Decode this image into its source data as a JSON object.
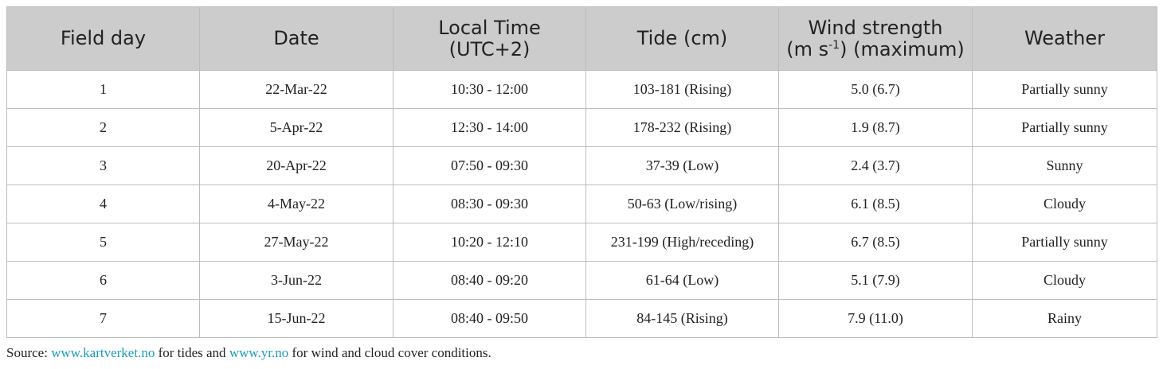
{
  "table": {
    "headers": [
      [
        "Field day"
      ],
      [
        "Date"
      ],
      [
        "Local Time",
        "(UTC+2)"
      ],
      [
        "Tide (cm)"
      ],
      [
        "Wind strength",
        "(m s",
        "-1",
        ") (maximum)"
      ],
      [
        "Weather"
      ]
    ],
    "rows": [
      [
        "1",
        "22-Mar-22",
        "10:30 - 12:00",
        "103-181 (Rising)",
        "5.0 (6.7)",
        "Partially sunny"
      ],
      [
        "2",
        "5-Apr-22",
        "12:30 - 14:00",
        "178-232 (Rising)",
        "1.9 (8.7)",
        "Partially sunny"
      ],
      [
        "3",
        "20-Apr-22",
        "07:50 - 09:30",
        "37-39 (Low)",
        "2.4 (3.7)",
        "Sunny"
      ],
      [
        "4",
        "4-May-22",
        "08:30 - 09:30",
        "50-63 (Low/rising)",
        "6.1 (8.5)",
        "Cloudy"
      ],
      [
        "5",
        "27-May-22",
        "10:20 - 12:10",
        "231-199 (High/receding)",
        "6.7 (8.5)",
        "Partially sunny"
      ],
      [
        "6",
        "3-Jun-22",
        "08:40 - 09:20",
        "61-64 (Low)",
        "5.1 (7.9)",
        "Cloudy"
      ],
      [
        "7",
        "15-Jun-22",
        "08:40 - 09:50",
        "84-145 (Rising)",
        "7.9 (11.0)",
        "Rainy"
      ]
    ]
  },
  "footnote": [
    "Source: ",
    "www.kartverket.no",
    " for tides and ",
    "www.yr.no",
    " for wind and cloud cover conditions."
  ]
}
